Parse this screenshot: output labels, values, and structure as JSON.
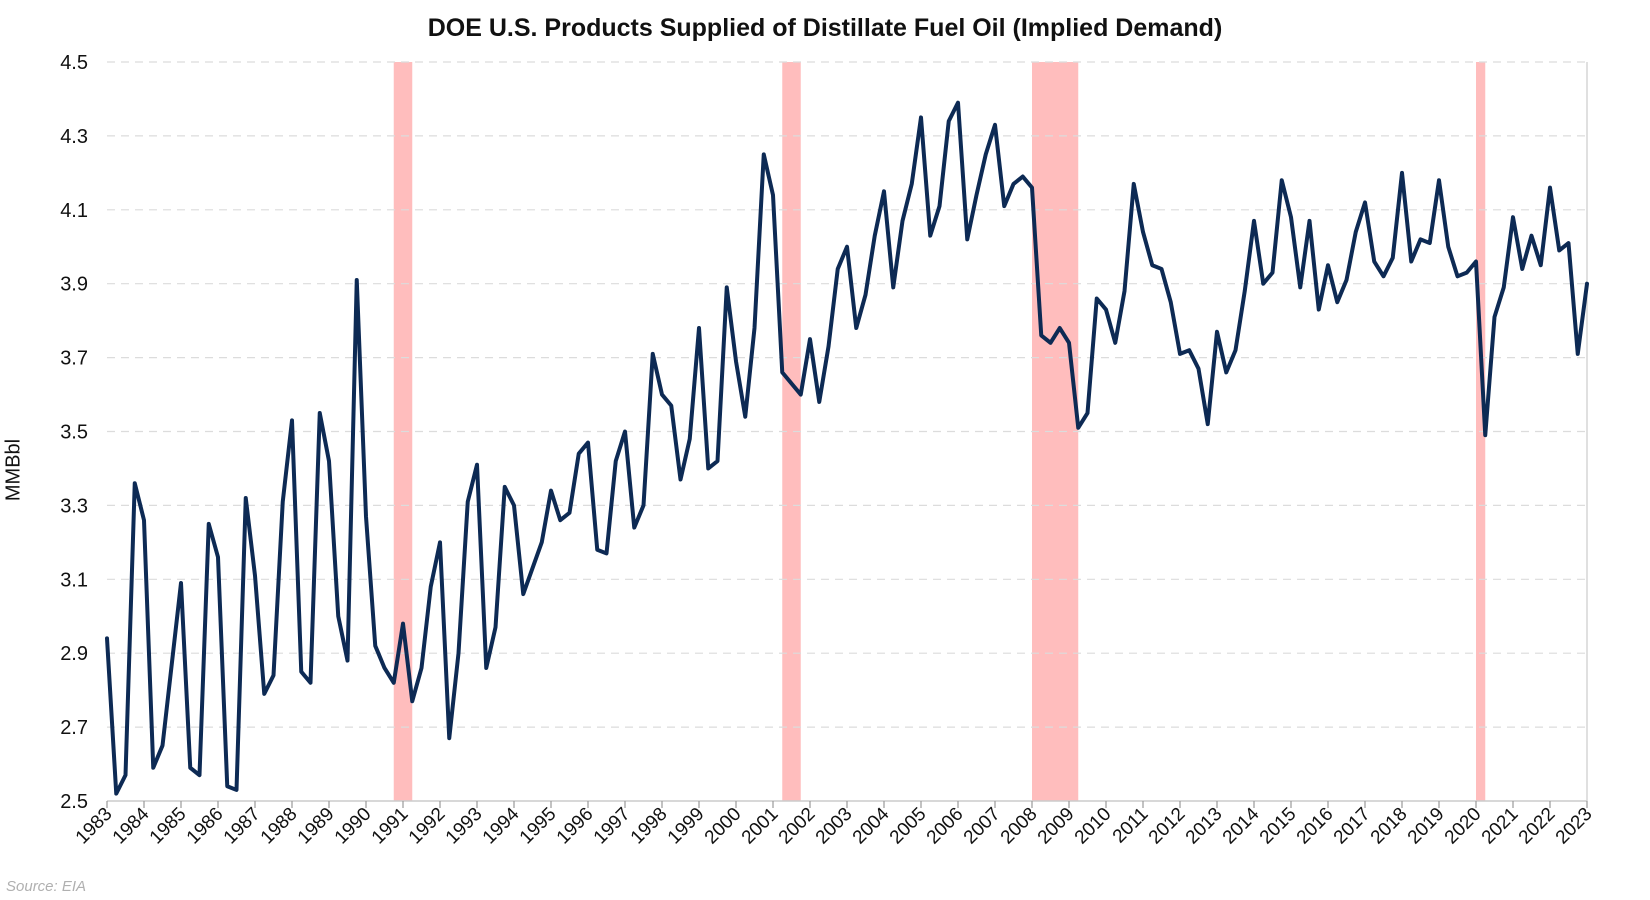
{
  "chart_data": {
    "type": "line",
    "title": "DOE U.S. Products Supplied of Distillate Fuel Oil (Implied Demand)",
    "ylabel": "MMBbl",
    "xlabel": "",
    "ylim": [
      2.5,
      4.5
    ],
    "xlim": [
      1983,
      2023
    ],
    "y_ticks": [
      2.5,
      2.7,
      2.9,
      3.1,
      3.3,
      3.5,
      3.7,
      3.9,
      4.1,
      4.3,
      4.5
    ],
    "y_tick_labels": [
      "2.5",
      "2.7",
      "2.9",
      "3.1",
      "3.3",
      "3.5",
      "3.7",
      "3.9",
      "4.1",
      "4.3",
      "4.5"
    ],
    "x_tick_labels": [
      "1983",
      "1984",
      "1985",
      "1986",
      "1987",
      "1988",
      "1989",
      "1990",
      "1991",
      "1992",
      "1993",
      "1994",
      "1995",
      "1996",
      "1997",
      "1998",
      "1999",
      "2000",
      "2001",
      "2002",
      "2003",
      "2004",
      "2005",
      "2006",
      "2007",
      "2008",
      "2009",
      "2010",
      "2011",
      "2012",
      "2013",
      "2014",
      "2015",
      "2016",
      "2017",
      "2018",
      "2019",
      "2020",
      "2021",
      "2022",
      "2023"
    ],
    "grid": "horizontal dashed",
    "line_color": "#0d2a54",
    "recession_color": "#ffbdbd",
    "recessions": [
      [
        1990.75,
        1991.25
      ],
      [
        2001.25,
        2001.75
      ],
      [
        2008.0,
        2009.25
      ],
      [
        2020.0,
        2020.25
      ]
    ],
    "series": [
      {
        "x": [
          1983.0,
          1983.25,
          1983.5,
          1983.75,
          1984.0,
          1984.25,
          1984.5,
          1984.75,
          1985.0,
          1985.25,
          1985.5,
          1985.75,
          1986.0,
          1986.25,
          1986.5,
          1986.75,
          1987.0,
          1987.25,
          1987.5,
          1987.75,
          1988.0,
          1988.25,
          1988.5,
          1988.75,
          1989.0,
          1989.25,
          1989.5,
          1989.75,
          1990.0,
          1990.25,
          1990.5,
          1990.75,
          1991.0,
          1991.25,
          1991.5,
          1991.75,
          1992.0,
          1992.25,
          1992.5,
          1992.75,
          1993.0,
          1993.25,
          1993.5,
          1993.75,
          1994.0,
          1994.25,
          1994.5,
          1994.75,
          1995.0,
          1995.25,
          1995.5,
          1995.75,
          1996.0,
          1996.25,
          1996.5,
          1996.75,
          1997.0,
          1997.25,
          1997.5,
          1997.75,
          1998.0,
          1998.25,
          1998.5,
          1998.75,
          1999.0,
          1999.25,
          1999.5,
          1999.75,
          2000.0,
          2000.25,
          2000.5,
          2000.75,
          2001.0,
          2001.25,
          2001.5,
          2001.75,
          2002.0,
          2002.25,
          2002.5,
          2002.75,
          2003.0,
          2003.25,
          2003.5,
          2003.75,
          2004.0,
          2004.25,
          2004.5,
          2004.75,
          2005.0,
          2005.25,
          2005.5,
          2005.75,
          2006.0,
          2006.25,
          2006.5,
          2006.75,
          2007.0,
          2007.25,
          2007.5,
          2007.75,
          2008.0,
          2008.25,
          2008.5,
          2008.75,
          2009.0,
          2009.25,
          2009.5,
          2009.75,
          2010.0,
          2010.25,
          2010.5,
          2010.75,
          2011.0,
          2011.25,
          2011.5,
          2011.75,
          2012.0,
          2012.25,
          2012.5,
          2012.75,
          2013.0,
          2013.25,
          2013.5,
          2013.75,
          2014.0,
          2014.25,
          2014.5,
          2014.75,
          2015.0,
          2015.25,
          2015.5,
          2015.75,
          2016.0,
          2016.25,
          2016.5,
          2016.75,
          2017.0,
          2017.25,
          2017.5,
          2017.75,
          2018.0,
          2018.25,
          2018.5,
          2018.75,
          2019.0,
          2019.25,
          2019.5,
          2019.75,
          2020.0,
          2020.25,
          2020.5,
          2020.75,
          2021.0,
          2021.25,
          2021.5,
          2021.75,
          2022.0,
          2022.25,
          2022.5,
          2022.75,
          2023.0
        ],
        "values": [
          2.94,
          2.52,
          2.57,
          3.36,
          3.26,
          2.59,
          2.65,
          2.87,
          3.09,
          2.59,
          2.57,
          3.25,
          3.16,
          2.54,
          2.53,
          3.32,
          3.11,
          2.79,
          2.84,
          3.31,
          3.53,
          2.85,
          2.82,
          3.55,
          3.42,
          3.0,
          2.88,
          3.91,
          3.27,
          2.92,
          2.86,
          2.82,
          2.98,
          2.77,
          2.86,
          3.08,
          3.2,
          2.67,
          2.9,
          3.31,
          3.41,
          2.86,
          2.97,
          3.35,
          3.3,
          3.06,
          3.13,
          3.2,
          3.34,
          3.26,
          3.28,
          3.44,
          3.47,
          3.18,
          3.17,
          3.42,
          3.5,
          3.24,
          3.3,
          3.71,
          3.6,
          3.57,
          3.37,
          3.48,
          3.78,
          3.4,
          3.42,
          3.89,
          3.69,
          3.54,
          3.78,
          4.25,
          4.14,
          3.66,
          3.63,
          3.6,
          3.75,
          3.58,
          3.73,
          3.94,
          4.0,
          3.78,
          3.87,
          4.03,
          4.15,
          3.89,
          4.07,
          4.17,
          4.35,
          4.03,
          4.11,
          4.34,
          4.39,
          4.02,
          4.14,
          4.25,
          4.33,
          4.11,
          4.17,
          4.19,
          4.16,
          3.76,
          3.74,
          3.78,
          3.74,
          3.51,
          3.55,
          3.86,
          3.83,
          3.74,
          3.88,
          4.17,
          4.04,
          3.95,
          3.94,
          3.85,
          3.71,
          3.72,
          3.67,
          3.52,
          3.77,
          3.66,
          3.72,
          3.88,
          4.07,
          3.9,
          3.93,
          4.18,
          4.08,
          3.89,
          4.07,
          3.83,
          3.95,
          3.85,
          3.91,
          4.04,
          4.12,
          3.96,
          3.92,
          3.97,
          4.2,
          3.96,
          4.02,
          4.01,
          4.18,
          4.0,
          3.92,
          3.93,
          3.96,
          3.49,
          3.81,
          3.89,
          4.08,
          3.94,
          4.03,
          3.95,
          4.16,
          3.99,
          4.01,
          3.71,
          3.9
        ]
      }
    ],
    "source": "Source: EIA"
  }
}
